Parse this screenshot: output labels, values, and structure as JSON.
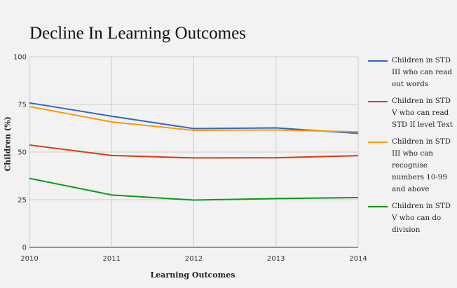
{
  "chart_data": {
    "type": "line",
    "title": "Decline In Learning Outcomes",
    "xlabel": "Learning Outcomes",
    "ylabel": "Children (%)",
    "x": [
      "2010",
      "2011",
      "2012",
      "2013",
      "2014"
    ],
    "ylim": [
      0,
      100
    ],
    "yticks": [
      "0",
      "25",
      "50",
      "75",
      "100"
    ],
    "grid": true,
    "legend_position": "right",
    "series": [
      {
        "name": "Children in STD III who can read out words",
        "color": "#3366cc",
        "values": [
          75.8,
          68.8,
          62.3,
          62.7,
          59.8
        ]
      },
      {
        "name": "Children in STD V who can read STD II level Text",
        "color": "#dc3912",
        "values": [
          53.7,
          48.2,
          46.9,
          47.0,
          48.1
        ]
      },
      {
        "name": "Children in STD III who can recognise numbers 10-99 and above",
        "color": "#ff9900",
        "values": [
          73.9,
          65.8,
          61.4,
          61.6,
          60.6
        ]
      },
      {
        "name": "Children in STD V who can do division",
        "color": "#109618",
        "values": [
          36.2,
          27.5,
          24.8,
          25.6,
          26.1
        ]
      }
    ]
  }
}
